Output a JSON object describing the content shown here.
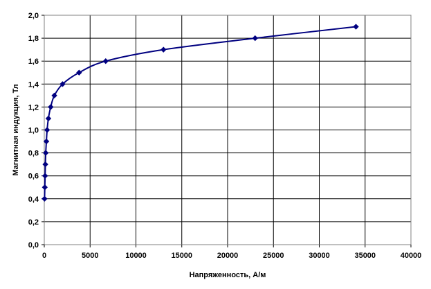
{
  "chart_data": {
    "type": "line",
    "xlabel": "Напряженность, А/м",
    "ylabel": "Магнитная индукция, Тл",
    "xlim": [
      0,
      40000
    ],
    "ylim": [
      0,
      2.0
    ],
    "x_ticks": [
      "0",
      "5000",
      "10000",
      "15000",
      "20000",
      "25000",
      "30000",
      "35000",
      "40000"
    ],
    "y_ticks": [
      "0,0",
      "0,2",
      "0,4",
      "0,6",
      "0,8",
      "1,0",
      "1,2",
      "1,4",
      "1,6",
      "1,8",
      "2,0"
    ],
    "grid": true,
    "legend": "none",
    "series": [
      {
        "color": "#000080",
        "marker": "diamond",
        "points": [
          {
            "x": 30,
            "y": 0.4
          },
          {
            "x": 60,
            "y": 0.5
          },
          {
            "x": 90,
            "y": 0.6
          },
          {
            "x": 120,
            "y": 0.7
          },
          {
            "x": 160,
            "y": 0.8
          },
          {
            "x": 230,
            "y": 0.9
          },
          {
            "x": 310,
            "y": 1.0
          },
          {
            "x": 450,
            "y": 1.1
          },
          {
            "x": 700,
            "y": 1.2
          },
          {
            "x": 1100,
            "y": 1.3
          },
          {
            "x": 2000,
            "y": 1.4
          },
          {
            "x": 3800,
            "y": 1.5
          },
          {
            "x": 6700,
            "y": 1.6
          },
          {
            "x": 13000,
            "y": 1.7
          },
          {
            "x": 23000,
            "y": 1.8
          },
          {
            "x": 34000,
            "y": 1.9
          }
        ]
      }
    ]
  }
}
